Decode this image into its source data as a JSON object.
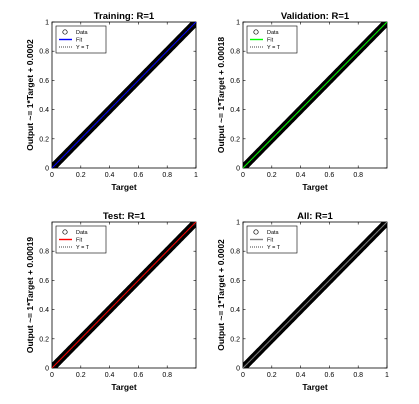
{
  "figure": {
    "background": "#ffffff"
  },
  "chart_data": [
    {
      "type": "scatter",
      "title": "Training: R=1",
      "xlabel": "Target",
      "ylabel": "Output ~= 1*Target + 0.0002",
      "xlim": [
        0,
        1
      ],
      "ylim": [
        0,
        1
      ],
      "xticks": [
        "0",
        "0.2",
        "0.4",
        "0.6",
        "0.8",
        "1"
      ],
      "yticks": [
        "0",
        "0.2",
        "0.4",
        "0.6",
        "0.8",
        "1"
      ],
      "grid": false,
      "legend": {
        "placement": "top-left",
        "entries": [
          "Data",
          "Fit",
          "Y = T"
        ]
      },
      "fit": {
        "slope": 1,
        "intercept": 0.0002,
        "color": "#0000ff"
      },
      "data_range": [
        0,
        1
      ]
    },
    {
      "type": "scatter",
      "title": "Validation: R=1",
      "xlabel": "Target",
      "ylabel": "Output ~= 1*Target + 0.00018",
      "xlim": [
        0,
        1
      ],
      "ylim": [
        0,
        1
      ],
      "xticks": [
        "0",
        "0.2",
        "0.4",
        "0.6",
        "0.8"
      ],
      "yticks": [
        "0",
        "0.2",
        "0.4",
        "0.6",
        "0.8",
        "1"
      ],
      "grid": false,
      "legend": {
        "placement": "top-left",
        "entries": [
          "Data",
          "Fit",
          "Y = T"
        ]
      },
      "fit": {
        "slope": 1,
        "intercept": 0.00018,
        "color": "#00ff00"
      },
      "data_range": [
        0,
        1
      ]
    },
    {
      "type": "scatter",
      "title": "Test: R=1",
      "xlabel": "Target",
      "ylabel": "Output ~= 1*Target + 0.00019",
      "xlim": [
        0,
        1
      ],
      "ylim": [
        0,
        1
      ],
      "xticks": [
        "0",
        "0.2",
        "0.4",
        "0.6",
        "0.8"
      ],
      "yticks": [
        "0",
        "0.2",
        "0.4",
        "0.6",
        "0.8"
      ],
      "grid": false,
      "legend": {
        "placement": "top-left",
        "entries": [
          "Data",
          "Fit",
          "Y = T"
        ]
      },
      "fit": {
        "slope": 1,
        "intercept": 0.00019,
        "color": "#ff0000"
      },
      "data_range": [
        0,
        0.99
      ]
    },
    {
      "type": "scatter",
      "title": "All: R=1",
      "xlabel": "Target",
      "ylabel": "Output ~= 1*Target + 0.0002",
      "xlim": [
        0,
        1
      ],
      "ylim": [
        0,
        1
      ],
      "xticks": [
        "0",
        "0.2",
        "0.4",
        "0.6",
        "0.8",
        "1"
      ],
      "yticks": [
        "0",
        "0.2",
        "0.4",
        "0.6",
        "0.8",
        "1"
      ],
      "grid": false,
      "legend": {
        "placement": "top-left",
        "entries": [
          "Data",
          "Fit",
          "Y = T"
        ]
      },
      "fit": {
        "slope": 1,
        "intercept": 0.0002,
        "color": "#808080"
      },
      "data_range": [
        0,
        1
      ]
    }
  ]
}
